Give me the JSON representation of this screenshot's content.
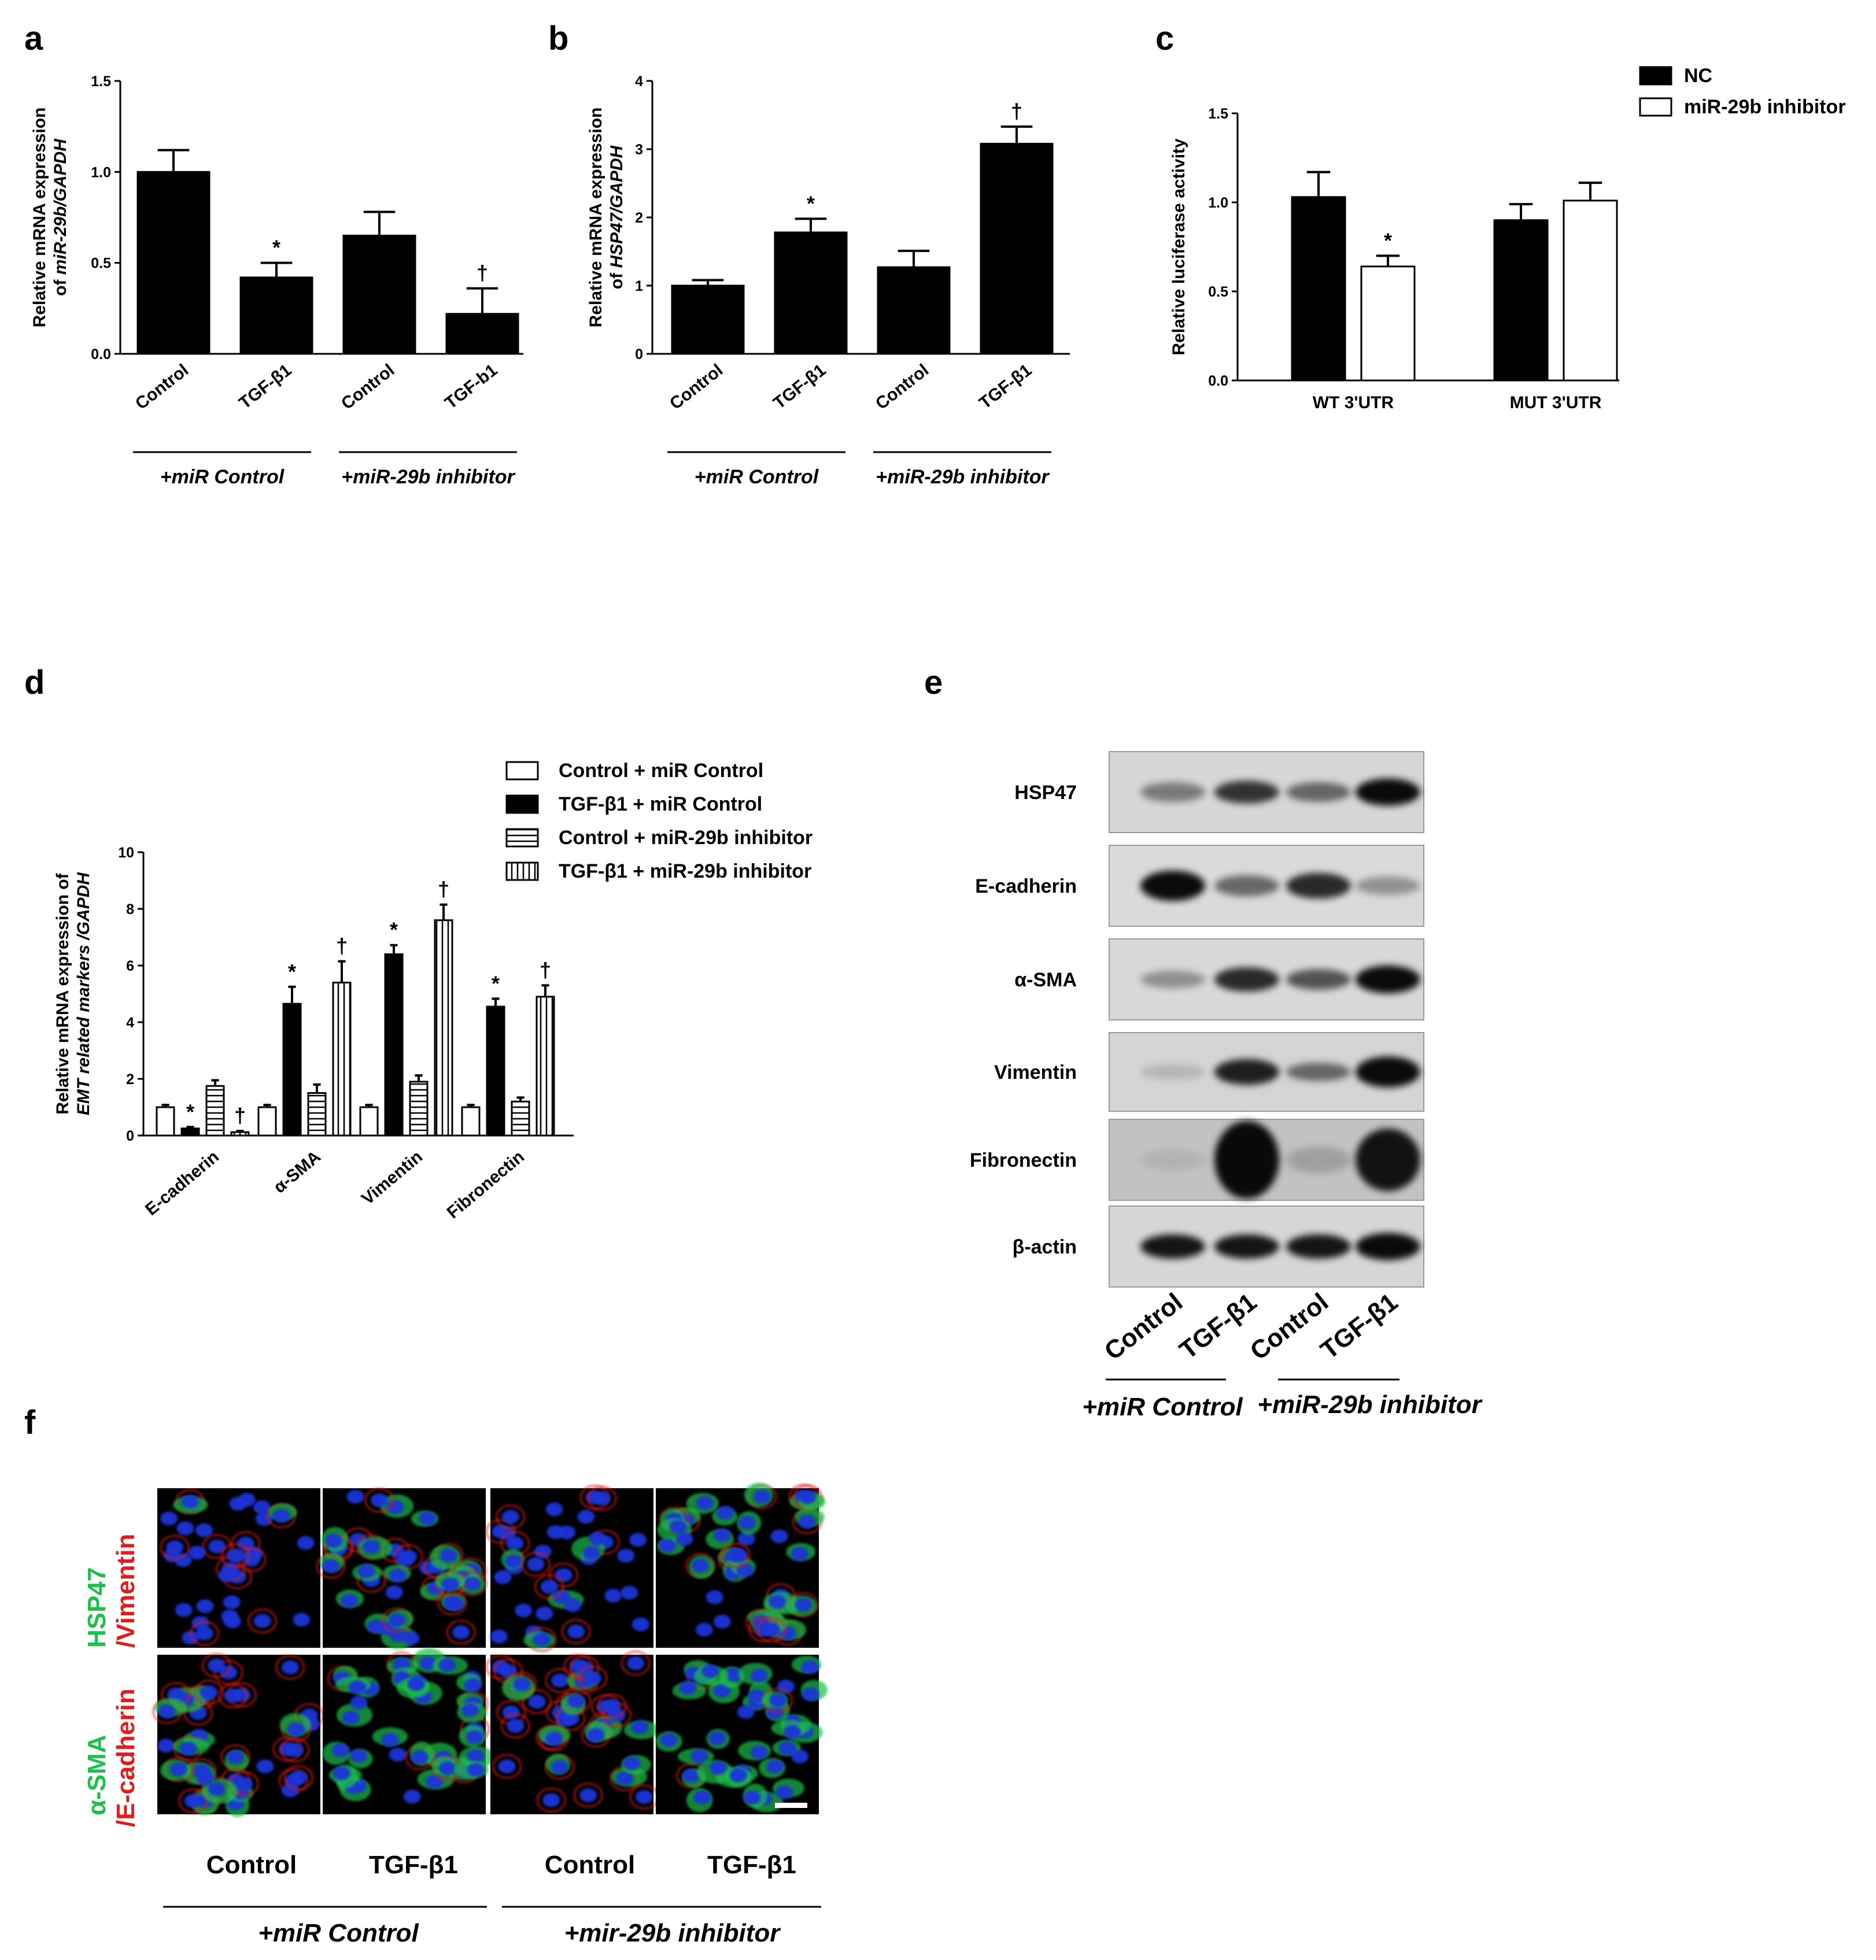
{
  "panel_labels": [
    "a",
    "b",
    "c",
    "d",
    "e",
    "f"
  ],
  "colors": {
    "black_bar": "#000000",
    "white_bar": "#ffffff",
    "green": "#1fbf4b",
    "red": "#e21b1b",
    "nucleus_blue": "#1f34d6"
  },
  "chart_data": [
    {
      "panel": "a",
      "type": "bar",
      "ylabel_line1": "Relative mRNA expression",
      "ylabel_line2": "of miR-29b/GAPDH",
      "ylim": [
        0,
        1.5
      ],
      "yticks": [
        "0.0",
        "0.5",
        "1.0",
        "1.5"
      ],
      "categories": [
        "Control",
        "TGF-β1",
        "Control",
        "TGF-b1"
      ],
      "values": [
        1.0,
        0.42,
        0.65,
        0.22
      ],
      "errors": [
        0.12,
        0.08,
        0.13,
        0.14
      ],
      "significance": [
        "",
        "*",
        "",
        "†"
      ],
      "groups": [
        "+miR Control",
        "+miR-29b inhibitor"
      ]
    },
    {
      "panel": "b",
      "type": "bar",
      "ylabel_line1": "Relative mRNA expression",
      "ylabel_line2": "of HSP47/GAPDH",
      "ylim": [
        0,
        4
      ],
      "yticks": [
        "0",
        "1",
        "2",
        "3",
        "4"
      ],
      "categories": [
        "Control",
        "TGF-β1",
        "Control",
        "TGF-β1"
      ],
      "values": [
        1.0,
        1.78,
        1.27,
        3.08
      ],
      "errors": [
        0.08,
        0.2,
        0.24,
        0.25
      ],
      "significance": [
        "",
        "*",
        "",
        "†"
      ],
      "groups": [
        "+miR Control",
        "+miR-29b inhibitor"
      ]
    },
    {
      "panel": "c",
      "type": "bar",
      "ylabel": "Relative luciferase activity",
      "ylim": [
        0,
        1.5
      ],
      "yticks": [
        "0.0",
        "0.5",
        "1.0",
        "1.5"
      ],
      "categories": [
        "WT 3'UTR",
        "MUT 3'UTR"
      ],
      "series": [
        {
          "name": "NC",
          "values": [
            1.03,
            0.9
          ],
          "errors": [
            0.14,
            0.09
          ]
        },
        {
          "name": "miR-29b inhibitor",
          "values": [
            0.64,
            1.01
          ],
          "errors": [
            0.06,
            0.1
          ]
        }
      ],
      "significance": [
        "",
        "*",
        "",
        ""
      ]
    },
    {
      "panel": "d",
      "type": "bar",
      "ylabel_line1": "Relative mRNA expression of",
      "ylabel_line2": "EMT related markers /GAPDH",
      "ylim": [
        0,
        10
      ],
      "yticks": [
        "0",
        "2",
        "4",
        "6",
        "8",
        "10"
      ],
      "categories": [
        "E-cadherin",
        "α-SMA",
        "Vimentin",
        "Fibronectin"
      ],
      "series": [
        {
          "name": "Control + miR Control",
          "values": [
            1.0,
            1.0,
            1.0,
            1.0
          ],
          "errors": [
            0.08,
            0.08,
            0.08,
            0.08
          ]
        },
        {
          "name": "TGF-β1 + miR Control",
          "values": [
            0.25,
            4.65,
            6.4,
            4.55
          ],
          "errors": [
            0.05,
            0.6,
            0.32,
            0.28
          ]
        },
        {
          "name": "Control + miR-29b inhibitor",
          "values": [
            1.75,
            1.5,
            1.9,
            1.2
          ],
          "errors": [
            0.2,
            0.3,
            0.22,
            0.14
          ]
        },
        {
          "name": "TGF-β1 + miR-29b inhibitor",
          "values": [
            0.12,
            5.4,
            7.6,
            4.9
          ],
          "errors": [
            0.04,
            0.75,
            0.55,
            0.4
          ]
        }
      ],
      "significance": [
        [
          "",
          "*",
          "",
          "†"
        ],
        [
          "",
          "*",
          "",
          "†"
        ],
        [
          "",
          "*",
          "",
          "†"
        ],
        [
          "",
          "*",
          "",
          "†"
        ]
      ]
    }
  ],
  "western_blot": {
    "rows": [
      "HSP47",
      "E-cadherin",
      "α-SMA",
      "Vimentin",
      "Fibronectin",
      "β-actin"
    ],
    "lanes": [
      "Control",
      "TGF-β1",
      "Control",
      "TGF-β1"
    ],
    "groups": [
      "+miR Control",
      "+miR-29b inhibitor"
    ]
  },
  "immunofluorescence": {
    "row1_label_green": "HSP47",
    "row1_label_red": "/Vimentin",
    "row2_label_green": "α-SMA",
    "row2_label_red": "/E-cadherin",
    "columns": [
      "Control",
      "TGF-β1",
      "Control",
      "TGF-β1"
    ],
    "groups": [
      "+miR Control",
      "+mir-29b inhibitor"
    ]
  }
}
